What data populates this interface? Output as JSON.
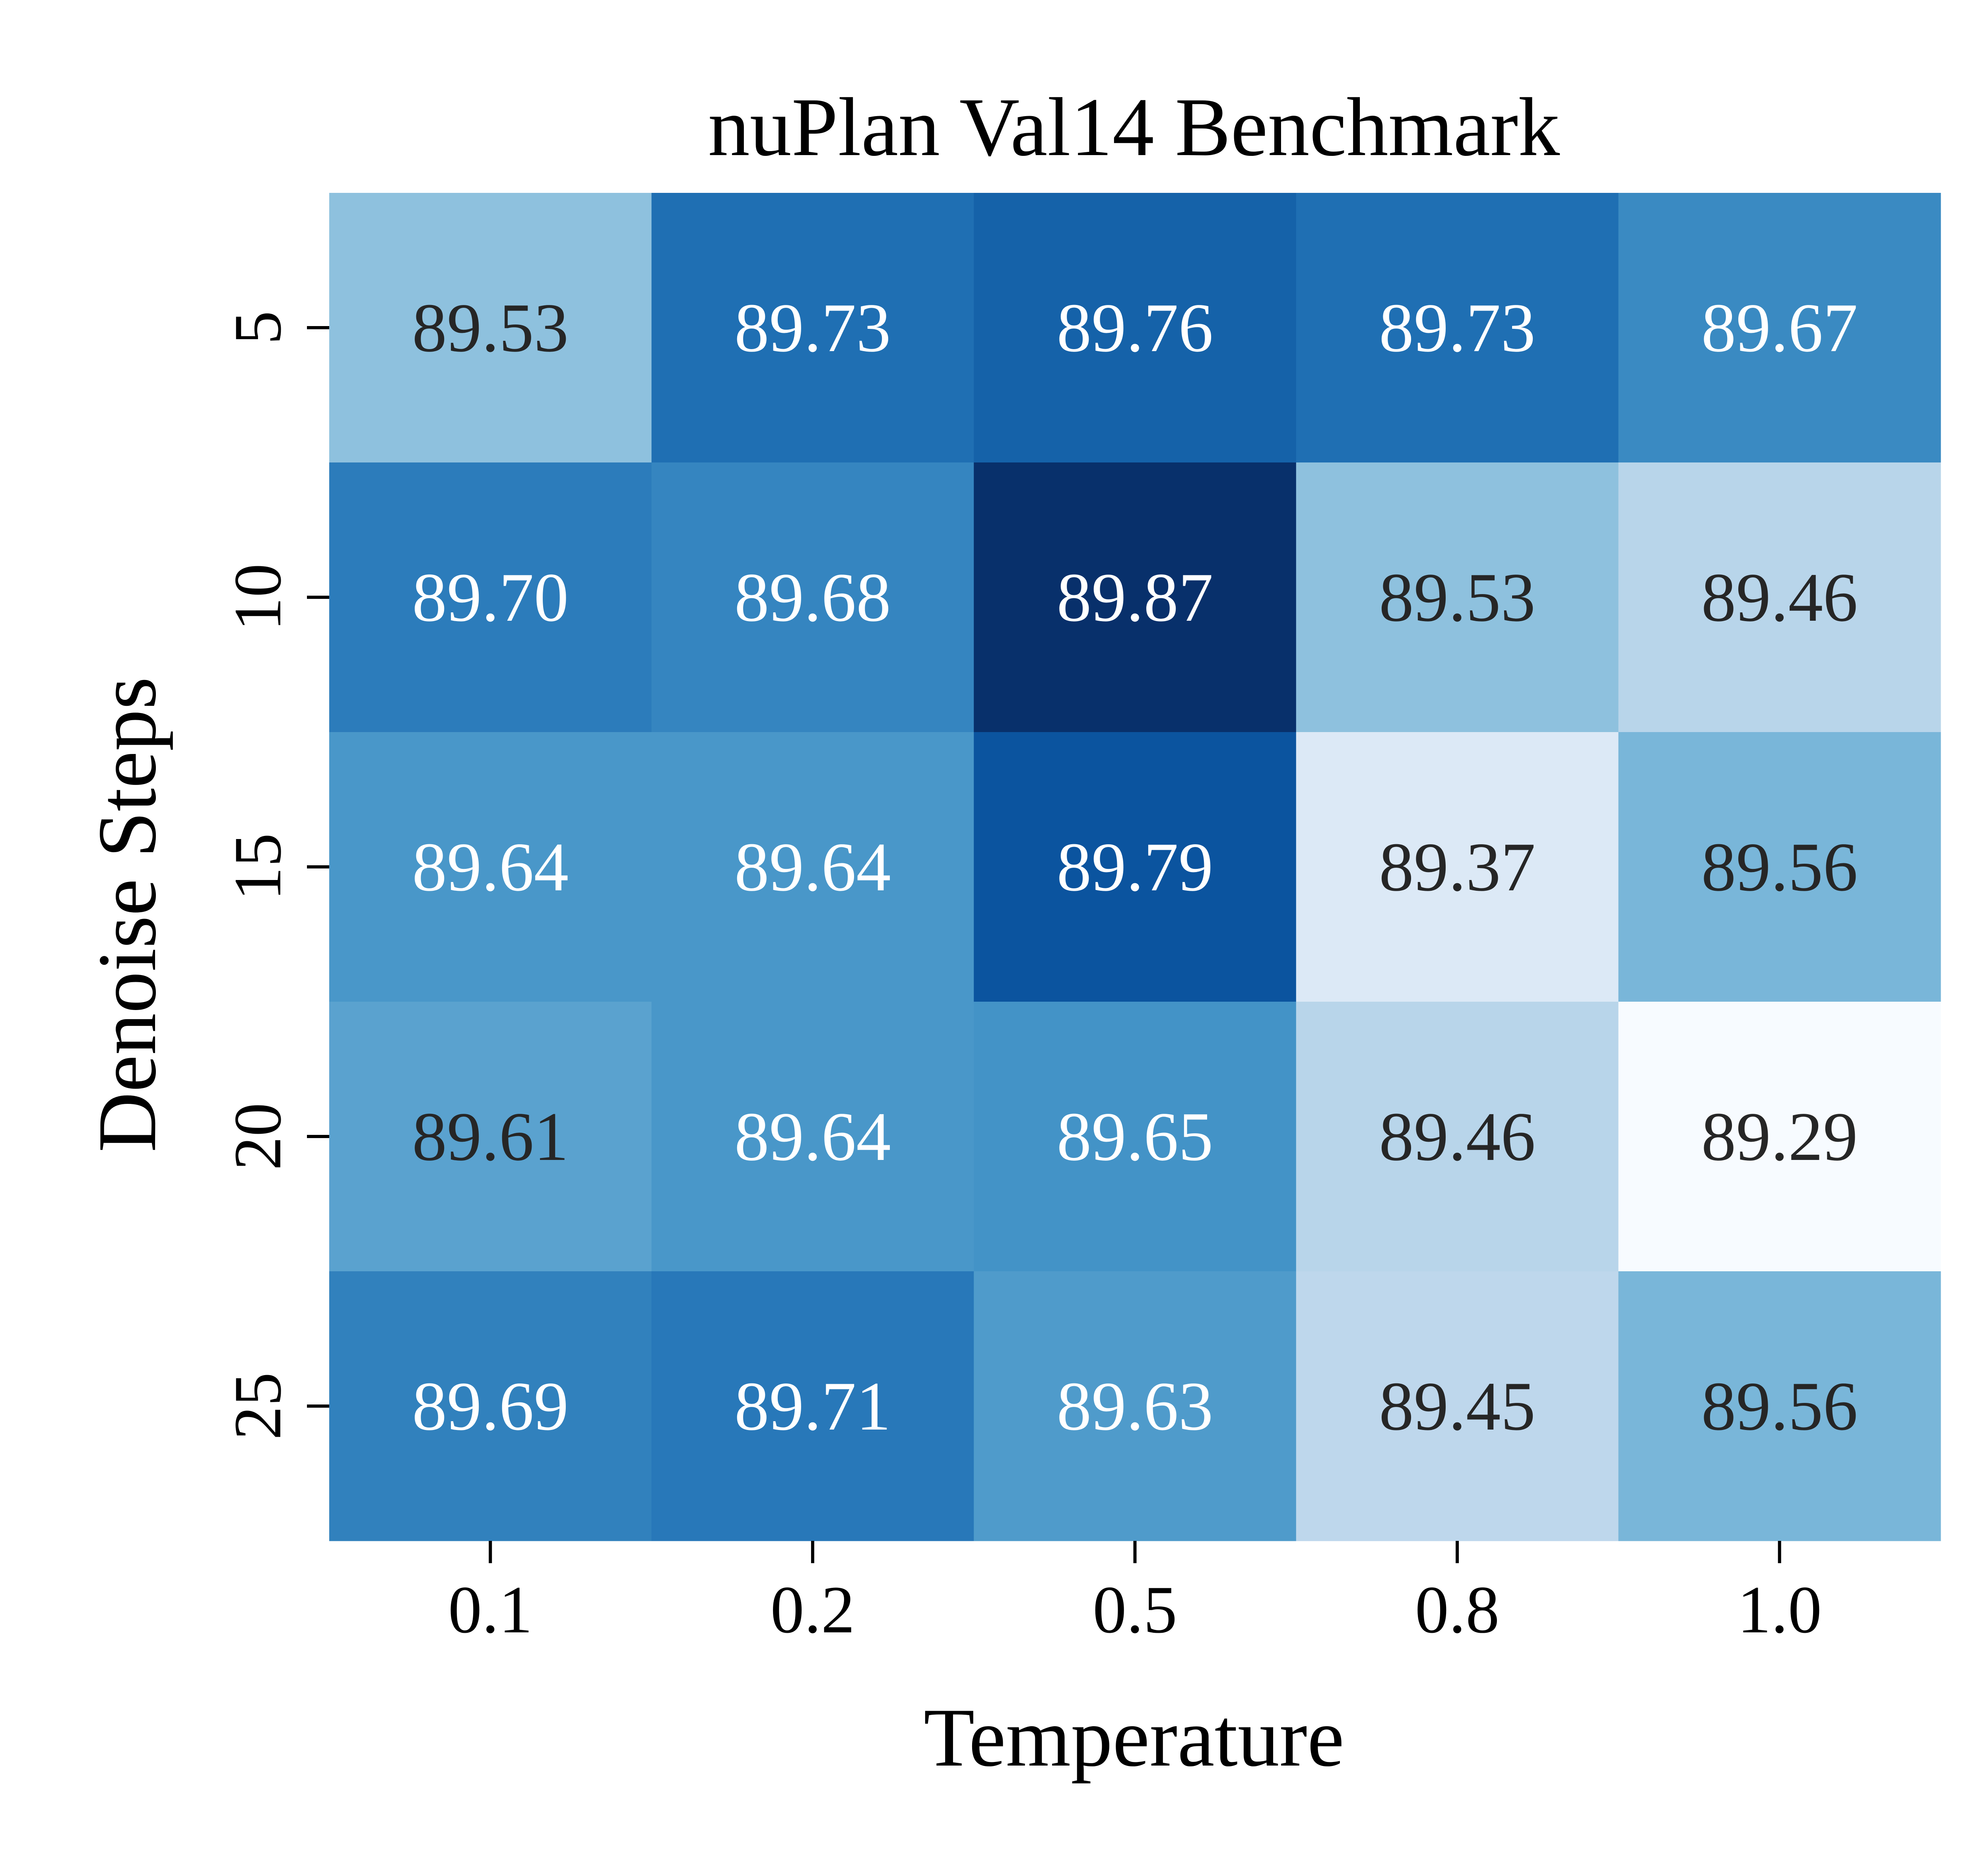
{
  "chart_data": {
    "type": "heatmap",
    "title": "nuPlan Val14 Benchmark",
    "xlabel": "Temperature",
    "ylabel": "Denoise Steps",
    "x_categories": [
      "0.1",
      "0.2",
      "0.5",
      "0.8",
      "1.0"
    ],
    "y_categories": [
      "5",
      "10",
      "15",
      "20",
      "25"
    ],
    "values": [
      [
        89.53,
        89.73,
        89.76,
        89.73,
        89.67
      ],
      [
        89.7,
        89.68,
        89.87,
        89.53,
        89.46
      ],
      [
        89.64,
        89.64,
        89.79,
        89.37,
        89.56
      ],
      [
        89.61,
        89.64,
        89.65,
        89.46,
        89.29
      ],
      [
        89.69,
        89.71,
        89.63,
        89.45,
        89.56
      ]
    ],
    "value_labels": [
      [
        "89.53",
        "89.73",
        "89.76",
        "89.73",
        "89.67"
      ],
      [
        "89.70",
        "89.68",
        "89.87",
        "89.53",
        "89.46"
      ],
      [
        "89.64",
        "89.64",
        "89.79",
        "89.37",
        "89.56"
      ],
      [
        "89.61",
        "89.64",
        "89.65",
        "89.46",
        "89.29"
      ],
      [
        "89.69",
        "89.71",
        "89.63",
        "89.45",
        "89.56"
      ]
    ],
    "colormap": "Blues",
    "vmin": 89.29,
    "vmax": 89.87,
    "colorbar": false,
    "grid": false,
    "colors": {
      "light_text": "#ffffff",
      "dark_text": "#262626"
    }
  }
}
